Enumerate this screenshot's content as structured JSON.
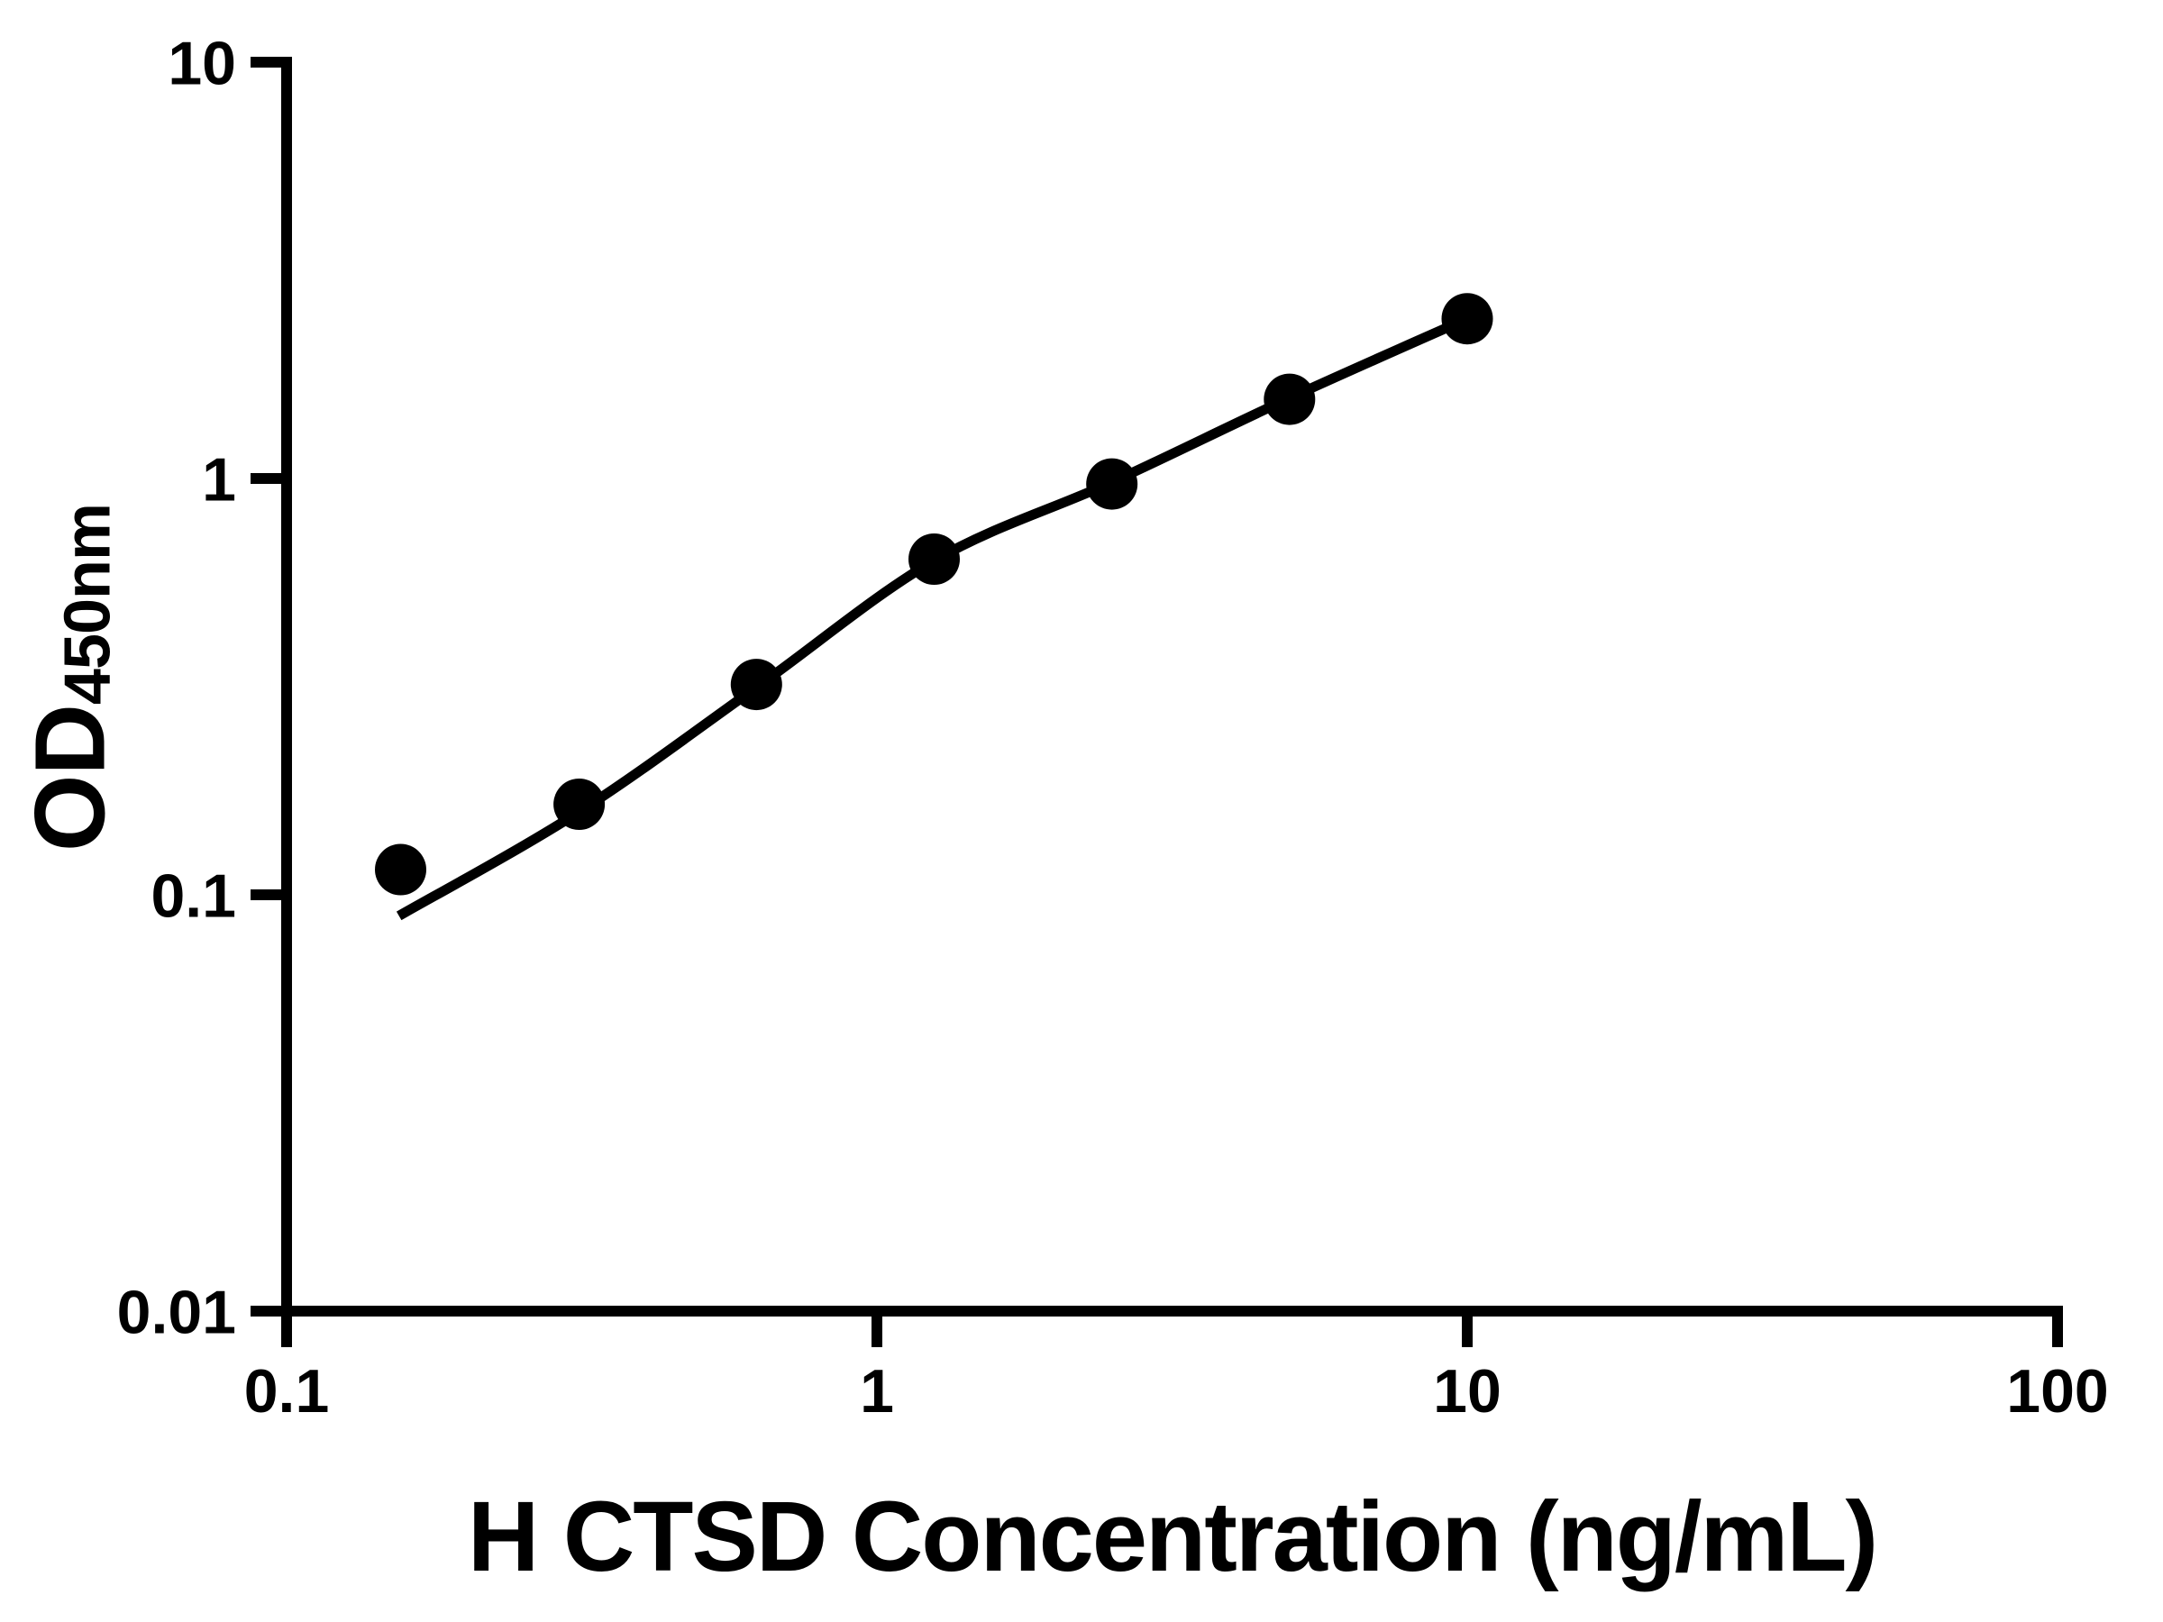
{
  "figure": {
    "background": "#ffffff",
    "ink_color": "#000000"
  },
  "chart_data": {
    "type": "scatter",
    "title": "",
    "xlabel": "H CTSD Concentration (ng/mL)",
    "ylabel": {
      "main": "OD",
      "sub": "450nm"
    },
    "x_scale": "log",
    "y_scale": "log",
    "xlim": [
      0.1,
      100
    ],
    "ylim": [
      0.01,
      10
    ],
    "grid": false,
    "legend": null,
    "x_ticks": [
      {
        "value": 0.1,
        "label": "0.1"
      },
      {
        "value": 1,
        "label": "1"
      },
      {
        "value": 10,
        "label": "10"
      },
      {
        "value": 100,
        "label": "100"
      }
    ],
    "y_ticks": [
      {
        "value": 10,
        "label": "10"
      },
      {
        "value": 1,
        "label": "1"
      },
      {
        "value": 0.1,
        "label": "0.1"
      },
      {
        "value": 0.01,
        "label": "0.01"
      }
    ],
    "series": [
      {
        "name": "standard-points",
        "kind": "scatter",
        "marker": "circle",
        "color": "#000000",
        "points": [
          {
            "x": 0.156,
            "y": 0.115
          },
          {
            "x": 0.313,
            "y": 0.165
          },
          {
            "x": 0.625,
            "y": 0.32
          },
          {
            "x": 1.25,
            "y": 0.64
          },
          {
            "x": 2.5,
            "y": 0.97
          },
          {
            "x": 5,
            "y": 1.55
          },
          {
            "x": 10,
            "y": 2.42
          }
        ]
      },
      {
        "name": "fit-curve",
        "kind": "line",
        "color": "#000000",
        "points": [
          {
            "x": 0.155,
            "y": 0.089
          },
          {
            "x": 0.3125,
            "y": 0.158
          },
          {
            "x": 0.625,
            "y": 0.315
          },
          {
            "x": 1.25,
            "y": 0.635
          },
          {
            "x": 2.5,
            "y": 0.98
          },
          {
            "x": 5,
            "y": 1.56
          },
          {
            "x": 10,
            "y": 2.42
          }
        ]
      }
    ]
  }
}
